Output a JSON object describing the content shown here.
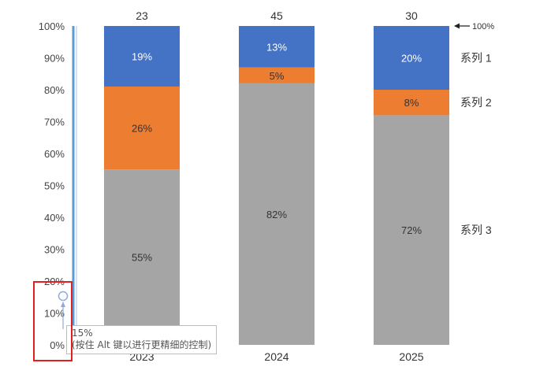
{
  "chart_data": {
    "type": "bar",
    "stacked": true,
    "normalized": true,
    "categories": [
      "2023",
      "2024",
      "2025"
    ],
    "top_labels": [
      "23",
      "45",
      "30"
    ],
    "series": [
      {
        "name": "系列 3",
        "values": [
          55,
          82,
          72
        ],
        "labels": [
          "55%",
          "82%",
          "72%"
        ],
        "color": "#a5a5a5"
      },
      {
        "name": "系列 2",
        "values": [
          26,
          5,
          8
        ],
        "labels": [
          "26%",
          "5%",
          "8%"
        ],
        "color": "#ed7d31"
      },
      {
        "name": "系列 1",
        "values": [
          19,
          13,
          20
        ],
        "labels": [
          "19%",
          "13%",
          "20%"
        ],
        "color": "#4472c4"
      }
    ],
    "ylim": [
      0,
      100
    ],
    "yticks": [
      "0%",
      "10%",
      "20%",
      "30%",
      "40%",
      "50%",
      "60%",
      "70%",
      "80%",
      "90%",
      "100%"
    ],
    "annotation": "← 100%",
    "legend": "right, aligned to series segments of last bar"
  },
  "tooltip": {
    "value": "15%",
    "hint": "(按住 Alt 键以进行更精细的控制)"
  },
  "handle_value": 15,
  "colors": {
    "axis_highlight": "#5b9bd5",
    "selection": "#e02020"
  }
}
